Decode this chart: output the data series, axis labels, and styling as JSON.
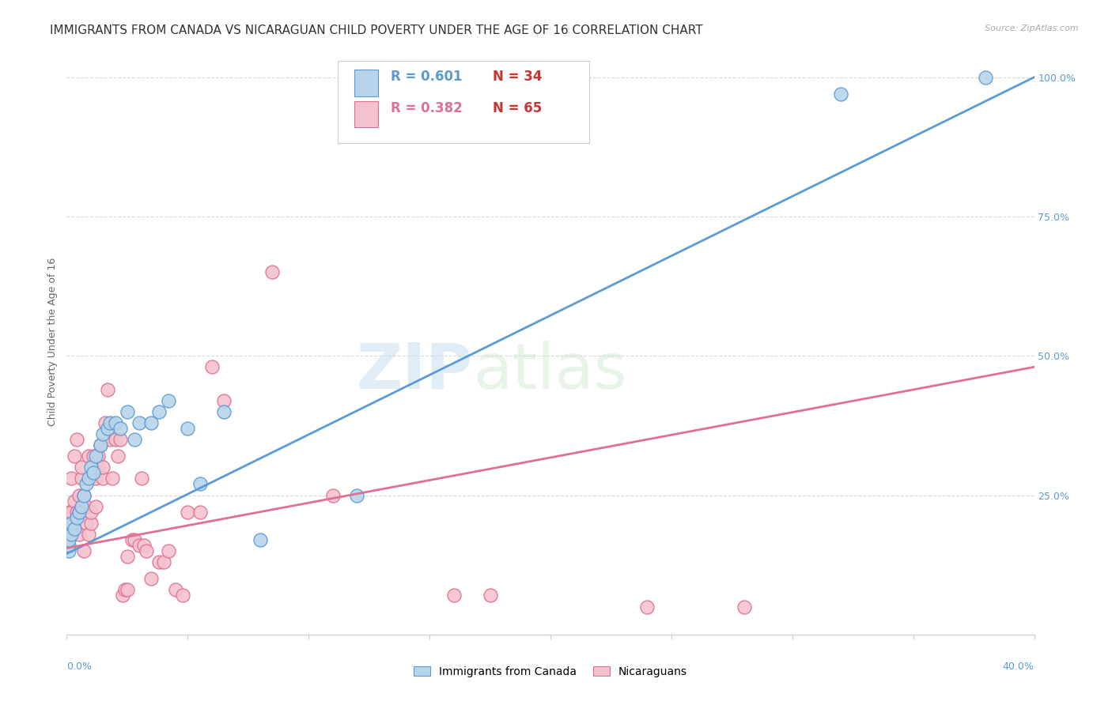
{
  "title": "IMMIGRANTS FROM CANADA VS NICARAGUAN CHILD POVERTY UNDER THE AGE OF 16 CORRELATION CHART",
  "source": "Source: ZipAtlas.com",
  "ylabel": "Child Poverty Under the Age of 16",
  "x_min": 0.0,
  "x_max": 0.4,
  "y_min": 0.0,
  "y_max": 1.05,
  "blue_R": 0.601,
  "blue_N": 34,
  "pink_R": 0.382,
  "pink_N": 65,
  "blue_color": "#b8d4ea",
  "blue_line_color": "#5b9bd5",
  "pink_color": "#f4c2ce",
  "pink_line_color": "#e07090",
  "legend_label_blue": "Immigrants from Canada",
  "legend_label_pink": "Nicaraguans",
  "blue_scatter_x": [
    0.001,
    0.001,
    0.001,
    0.002,
    0.002,
    0.003,
    0.004,
    0.005,
    0.006,
    0.007,
    0.008,
    0.009,
    0.01,
    0.011,
    0.012,
    0.014,
    0.015,
    0.017,
    0.018,
    0.02,
    0.022,
    0.025,
    0.028,
    0.03,
    0.035,
    0.038,
    0.042,
    0.05,
    0.055,
    0.065,
    0.08,
    0.12,
    0.32,
    0.38
  ],
  "blue_scatter_y": [
    0.15,
    0.16,
    0.17,
    0.18,
    0.2,
    0.19,
    0.21,
    0.22,
    0.23,
    0.25,
    0.27,
    0.28,
    0.3,
    0.29,
    0.32,
    0.34,
    0.36,
    0.37,
    0.38,
    0.38,
    0.37,
    0.4,
    0.35,
    0.38,
    0.38,
    0.4,
    0.42,
    0.37,
    0.27,
    0.4,
    0.17,
    0.25,
    0.97,
    1.0
  ],
  "pink_scatter_x": [
    0.001,
    0.001,
    0.001,
    0.002,
    0.002,
    0.002,
    0.003,
    0.003,
    0.003,
    0.004,
    0.004,
    0.005,
    0.005,
    0.005,
    0.006,
    0.006,
    0.007,
    0.007,
    0.008,
    0.008,
    0.009,
    0.009,
    0.01,
    0.01,
    0.011,
    0.012,
    0.012,
    0.013,
    0.013,
    0.014,
    0.015,
    0.015,
    0.016,
    0.017,
    0.018,
    0.019,
    0.02,
    0.021,
    0.022,
    0.023,
    0.024,
    0.025,
    0.025,
    0.027,
    0.028,
    0.03,
    0.031,
    0.032,
    0.033,
    0.035,
    0.038,
    0.04,
    0.042,
    0.045,
    0.048,
    0.05,
    0.055,
    0.06,
    0.065,
    0.085,
    0.11,
    0.16,
    0.175,
    0.24,
    0.28
  ],
  "pink_scatter_y": [
    0.18,
    0.2,
    0.22,
    0.19,
    0.22,
    0.28,
    0.2,
    0.24,
    0.32,
    0.22,
    0.35,
    0.18,
    0.22,
    0.25,
    0.28,
    0.3,
    0.25,
    0.15,
    0.2,
    0.23,
    0.18,
    0.32,
    0.2,
    0.22,
    0.32,
    0.23,
    0.28,
    0.3,
    0.32,
    0.34,
    0.28,
    0.3,
    0.38,
    0.44,
    0.35,
    0.28,
    0.35,
    0.32,
    0.35,
    0.07,
    0.08,
    0.08,
    0.14,
    0.17,
    0.17,
    0.16,
    0.28,
    0.16,
    0.15,
    0.1,
    0.13,
    0.13,
    0.15,
    0.08,
    0.07,
    0.22,
    0.22,
    0.48,
    0.42,
    0.65,
    0.25,
    0.07,
    0.07,
    0.05,
    0.05
  ],
  "blue_trend_x": [
    0.0,
    0.4
  ],
  "blue_trend_y": [
    0.145,
    1.0
  ],
  "pink_trend_x": [
    0.0,
    0.4
  ],
  "pink_trend_y": [
    0.155,
    0.48
  ],
  "ytick_values": [
    0.0,
    0.25,
    0.5,
    0.75,
    1.0
  ],
  "ytick_labels": [
    "",
    "25.0%",
    "50.0%",
    "75.0%",
    "100.0%"
  ],
  "grid_color": "#d8d8d8",
  "background_color": "#ffffff",
  "watermark_text1": "ZIP",
  "watermark_text2": "atlas",
  "title_fontsize": 11,
  "axis_label_fontsize": 9,
  "tick_fontsize": 9,
  "legend_fontsize": 11
}
